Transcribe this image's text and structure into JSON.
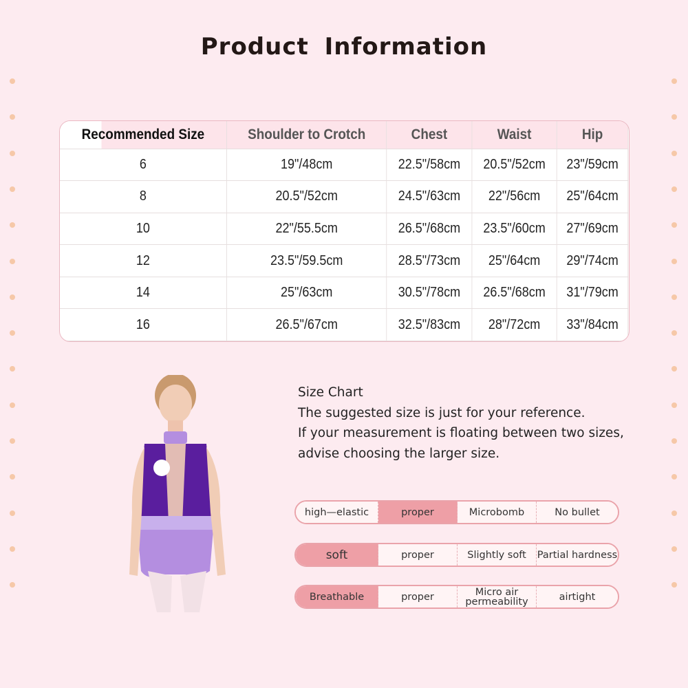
{
  "title": "Product  Information",
  "size_table": {
    "headers": [
      "Recommended Size",
      "Shoulder to Crotch",
      "Chest",
      "Waist",
      "Hip"
    ],
    "rows": [
      [
        "6",
        "19\"/48cm",
        "22.5\"/58cm",
        "20.5\"/52cm",
        "23\"/59cm"
      ],
      [
        "8",
        "20.5\"/52cm",
        "24.5\"/63cm",
        "22\"/56cm",
        "25\"/64cm"
      ],
      [
        "10",
        "22\"/55.5cm",
        "26.5\"/68cm",
        "23.5\"/60cm",
        "27\"/69cm"
      ],
      [
        "12",
        "23.5\"/59.5cm",
        "28.5\"/73cm",
        "25\"/64cm",
        "29\"/74cm"
      ],
      [
        "14",
        "25\"/63cm",
        "30.5\"/78cm",
        "26.5\"/68cm",
        "31\"/79cm"
      ],
      [
        "16",
        "26.5\"/67cm",
        "32.5\"/83cm",
        "28\"/72cm",
        "33\"/84cm"
      ]
    ]
  },
  "info": [
    "Size Chart",
    "The suggested size is just for your reference.",
    "If your measurement is floating between two sizes,",
    "advise choosing the larger size."
  ],
  "attributes": [
    {
      "cells": [
        "high—elastic",
        "proper",
        "Microbomb",
        "No bullet"
      ],
      "highlight": 1
    },
    {
      "cells": [
        "soft",
        "proper",
        "Slightly soft",
        "Partial hardness"
      ],
      "highlight": 0
    },
    {
      "cells": [
        "Breathable",
        "proper",
        "Micro air permeability",
        "airtight"
      ],
      "highlight": 0
    }
  ],
  "colors": {
    "background": "#fdebf0",
    "highlight": "#ee9fa6",
    "header": "#fde4ea",
    "leotard_top": "#5a1e9e",
    "leotard_bottom": "#b48ee0"
  }
}
